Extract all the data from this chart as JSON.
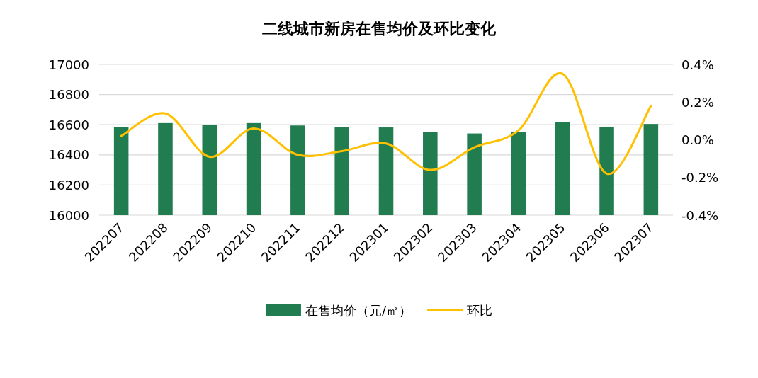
{
  "chart_data": {
    "type": "bar",
    "title": "二线城市新房在售均价及环比变化",
    "categories": [
      "202207",
      "202208",
      "202209",
      "202210",
      "202211",
      "202212",
      "202301",
      "202302",
      "202303",
      "202304",
      "202305",
      "202306",
      "202307"
    ],
    "series": [
      {
        "name": "在售均价（元/㎡）",
        "color": "#217d4f",
        "values": [
          16587,
          16611,
          16600,
          16611,
          16595,
          16583,
          16582,
          16553,
          16542,
          16553,
          16616,
          16587,
          16605
        ]
      },
      {
        "name": "环比",
        "type": "line",
        "axis": "y2",
        "color": "#ffc000",
        "values": [
          0.02,
          0.14,
          -0.09,
          0.06,
          -0.08,
          -0.06,
          -0.02,
          -0.16,
          -0.04,
          0.05,
          0.35,
          -0.18,
          0.18
        ]
      }
    ],
    "ylim": [
      16000,
      17000
    ],
    "yticks": [
      16000,
      16200,
      16400,
      16600,
      16800,
      17000
    ],
    "y2lim": [
      -0.4,
      0.4
    ],
    "y2ticks": [
      {
        "value": -0.4,
        "label": "-0.4%"
      },
      {
        "value": -0.2,
        "label": "-0.2%"
      },
      {
        "value": 0,
        "label": "0.0%"
      },
      {
        "value": 0.2,
        "label": "0.2%"
      },
      {
        "value": 0.4,
        "label": "0.4%"
      }
    ],
    "grid": "y",
    "legend": "bottom",
    "marker": "none"
  }
}
